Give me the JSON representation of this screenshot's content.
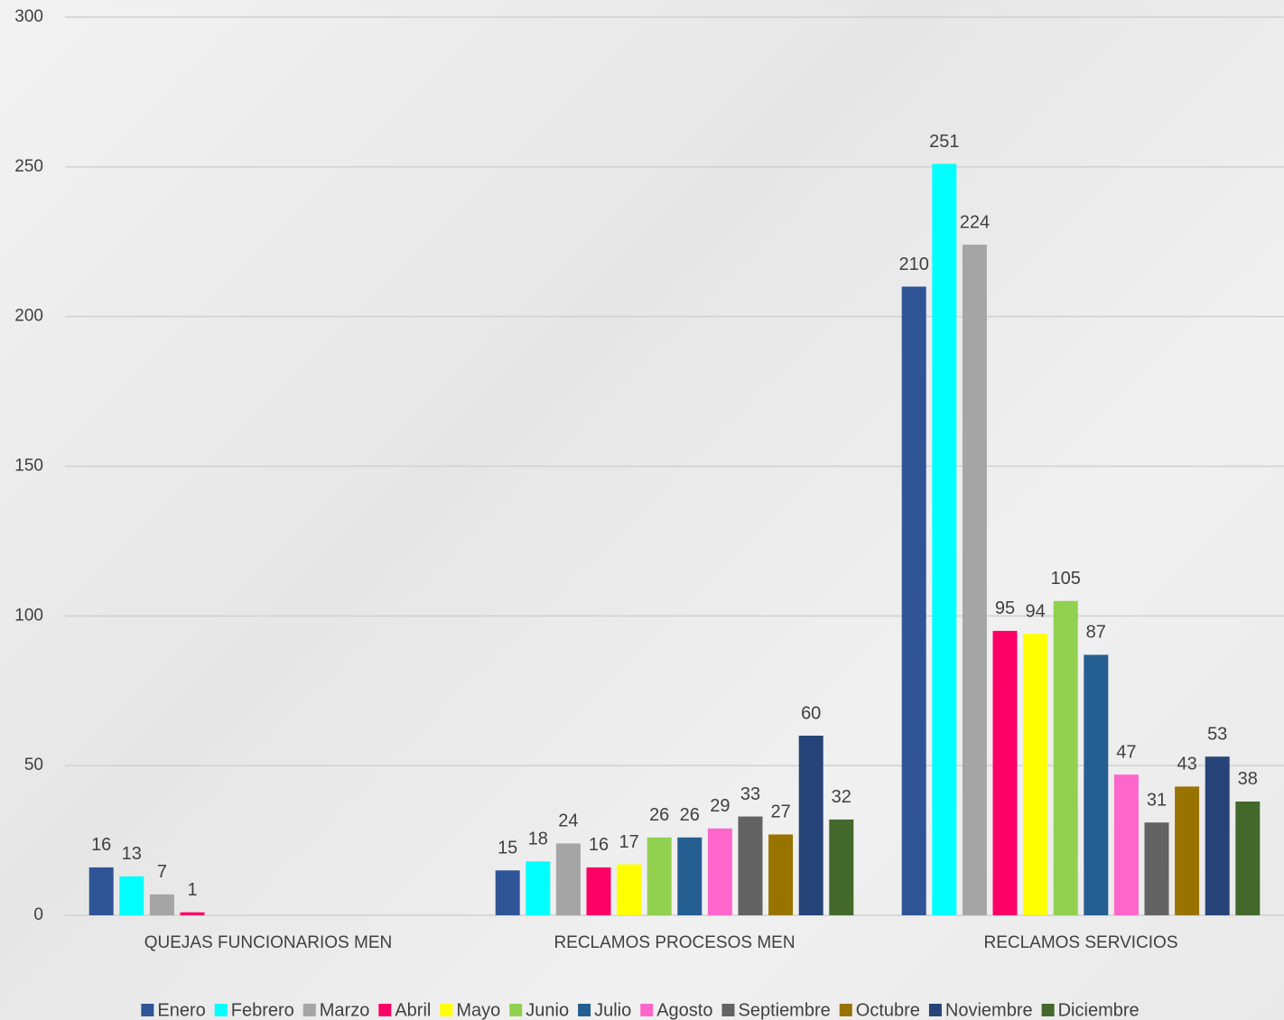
{
  "chart_data": {
    "type": "bar",
    "categories": [
      "QUEJAS FUNCIONARIOS MEN",
      "RECLAMOS PROCESOS MEN",
      "RECLAMOS SERVICIOS"
    ],
    "series": [
      {
        "name": "Enero",
        "color": "#2f5597",
        "values": [
          16,
          15,
          210
        ]
      },
      {
        "name": "Febrero",
        "color": "#00ffff",
        "values": [
          13,
          18,
          251
        ]
      },
      {
        "name": "Marzo",
        "color": "#a5a5a5",
        "values": [
          7,
          24,
          224
        ]
      },
      {
        "name": "Abril",
        "color": "#ff0066",
        "values": [
          1,
          16,
          95
        ]
      },
      {
        "name": "Mayo",
        "color": "#ffff00",
        "values": [
          null,
          17,
          94
        ]
      },
      {
        "name": "Junio",
        "color": "#92d050",
        "values": [
          null,
          26,
          105
        ]
      },
      {
        "name": "Julio",
        "color": "#255e91",
        "values": [
          null,
          26,
          87
        ]
      },
      {
        "name": "Agosto",
        "color": "#ff66cc",
        "values": [
          null,
          29,
          47
        ]
      },
      {
        "name": "Septiembre",
        "color": "#636363",
        "values": [
          null,
          33,
          31
        ]
      },
      {
        "name": "Octubre",
        "color": "#997300",
        "values": [
          null,
          27,
          43
        ]
      },
      {
        "name": "Noviembre",
        "color": "#264478",
        "values": [
          null,
          60,
          53
        ]
      },
      {
        "name": "Diciembre",
        "color": "#43682b",
        "values": [
          null,
          32,
          38
        ]
      }
    ],
    "ylim": [
      0,
      300
    ],
    "yticks": [
      0,
      50,
      100,
      150,
      200,
      250,
      300
    ],
    "grid": true,
    "legend": "bottom"
  }
}
